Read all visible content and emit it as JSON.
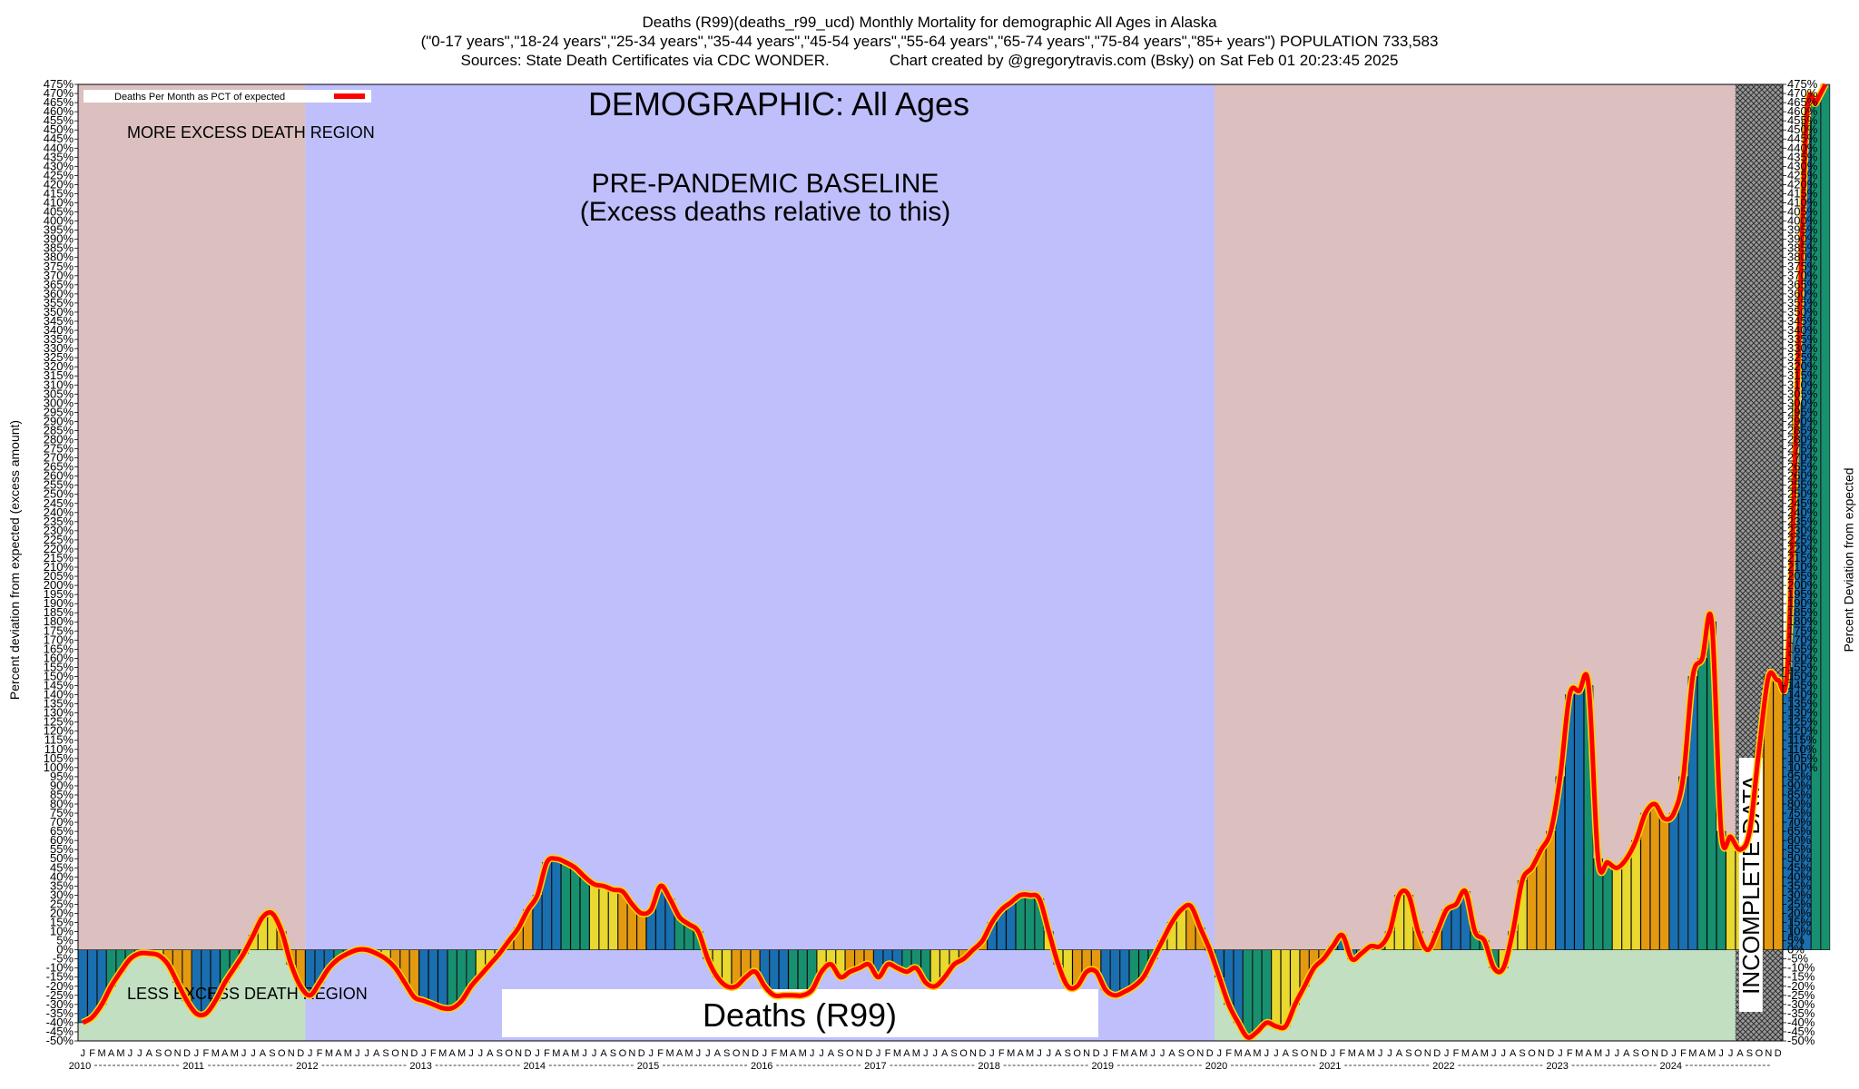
{
  "header": {
    "line1": "Deaths (R99)(deaths_r99_ucd) Monthly Mortality for demographic All Ages in Alaska",
    "line2": "(\"0-17 years\",\"18-24 years\",\"25-34 years\",\"35-44 years\",\"45-54 years\",\"55-64 years\",\"65-74 years\",\"75-84 years\",\"85+ years\") POPULATION 733,583",
    "line3": "Sources: State Death Certificates via CDC WONDER.              Chart created by @gregorytravis.com (Bsky) on Sat Feb 01 20:23:45 2025"
  },
  "labels": {
    "demographic": "DEMOGRAPHIC: All Ages",
    "baseline_line1": "PRE-PANDEMIC BASELINE",
    "baseline_line2": "(Excess deaths relative to this)",
    "more_excess": "MORE EXCESS DEATH REGION",
    "less_excess": "LESS EXCESS DEATH REGION",
    "cause_box": "Deaths (R99)",
    "incomplete": "INCOMPLETE DATA",
    "legend": "Deaths Per Month as PCT of expected",
    "left_axis": "Percent deviation from expected (excess amount)",
    "right_axis": "Percent Deviation from expected"
  },
  "colors": {
    "pink_region": "#dcbfbf",
    "baseline_region": "#bfbffc",
    "green_region": "#c2dfc2",
    "line": "#ff0000",
    "line_edge": "#ffd800",
    "bar_palette": [
      "#1a6fb0",
      "#179070",
      "#e8d830",
      "#e39a10"
    ]
  },
  "chart_data": {
    "type": "bar",
    "title": "Deaths (R99)(deaths_r99_ucd) Monthly Mortality for demographic All Ages in Alaska",
    "ylabel": "Percent deviation from expected (excess amount)",
    "ylabel_right": "Percent Deviation from expected",
    "ylim": [
      -50,
      475
    ],
    "ytick_step": 5,
    "grid": false,
    "legend_position": "top-left",
    "series_name": "Deaths Per Month as PCT of expected",
    "month_letters": [
      "J",
      "F",
      "M",
      "A",
      "M",
      "J",
      "J",
      "A",
      "S",
      "O",
      "N",
      "D"
    ],
    "years": [
      "2010",
      "2011",
      "2012",
      "2013",
      "2014",
      "2015",
      "2016",
      "2017",
      "2018",
      "2019",
      "2020",
      "2021",
      "2022",
      "2023",
      "2024"
    ],
    "regions": [
      {
        "name": "pre-baseline",
        "from": "2010-01",
        "to": "2011-12"
      },
      {
        "name": "baseline",
        "from": "2012-01",
        "to": "2019-12"
      },
      {
        "name": "pandemic",
        "from": "2020-01",
        "to": "2024-12"
      },
      {
        "name": "incomplete",
        "from": "2024-08",
        "to": "2024-12"
      }
    ],
    "values": [
      -40,
      -37,
      -30,
      -20,
      -12,
      -5,
      -2,
      -2,
      -3,
      -8,
      -18,
      -28,
      -35,
      -35,
      -28,
      -18,
      -10,
      -2,
      8,
      18,
      20,
      10,
      -8,
      -20,
      -25,
      -18,
      -10,
      -5,
      -2,
      0,
      0,
      -2,
      -5,
      -10,
      -18,
      -26,
      -28,
      -30,
      -32,
      -32,
      -28,
      -20,
      -14,
      -8,
      -2,
      5,
      12,
      22,
      30,
      48,
      50,
      48,
      45,
      40,
      36,
      35,
      33,
      32,
      25,
      20,
      22,
      35,
      28,
      18,
      14,
      10,
      -5,
      -15,
      -20,
      -20,
      -15,
      -12,
      -20,
      -25,
      -25,
      -25,
      -25,
      -22,
      -12,
      -8,
      -15,
      -12,
      -10,
      -8,
      -15,
      -8,
      -10,
      -12,
      -10,
      -18,
      -20,
      -15,
      -8,
      -5,
      0,
      5,
      15,
      22,
      26,
      30,
      30,
      28,
      10,
      -8,
      -20,
      -20,
      -12,
      -12,
      -22,
      -25,
      -23,
      -20,
      -15,
      -5,
      5,
      15,
      22,
      24,
      12,
      0,
      -15,
      -30,
      -40,
      -48,
      -45,
      -40,
      -42,
      -42,
      -30,
      -20,
      -10,
      -5,
      2,
      8,
      -5,
      -2,
      2,
      2,
      10,
      30,
      30,
      10,
      0,
      10,
      22,
      25,
      32,
      10,
      5,
      -10,
      -10,
      10,
      38,
      45,
      55,
      65,
      95,
      140,
      142,
      145,
      50,
      48,
      45,
      50,
      60,
      75,
      80,
      72,
      75,
      95,
      150,
      160,
      180,
      65,
      62,
      55,
      65,
      110,
      150,
      148,
      155,
      300,
      455,
      465,
      475
    ]
  }
}
